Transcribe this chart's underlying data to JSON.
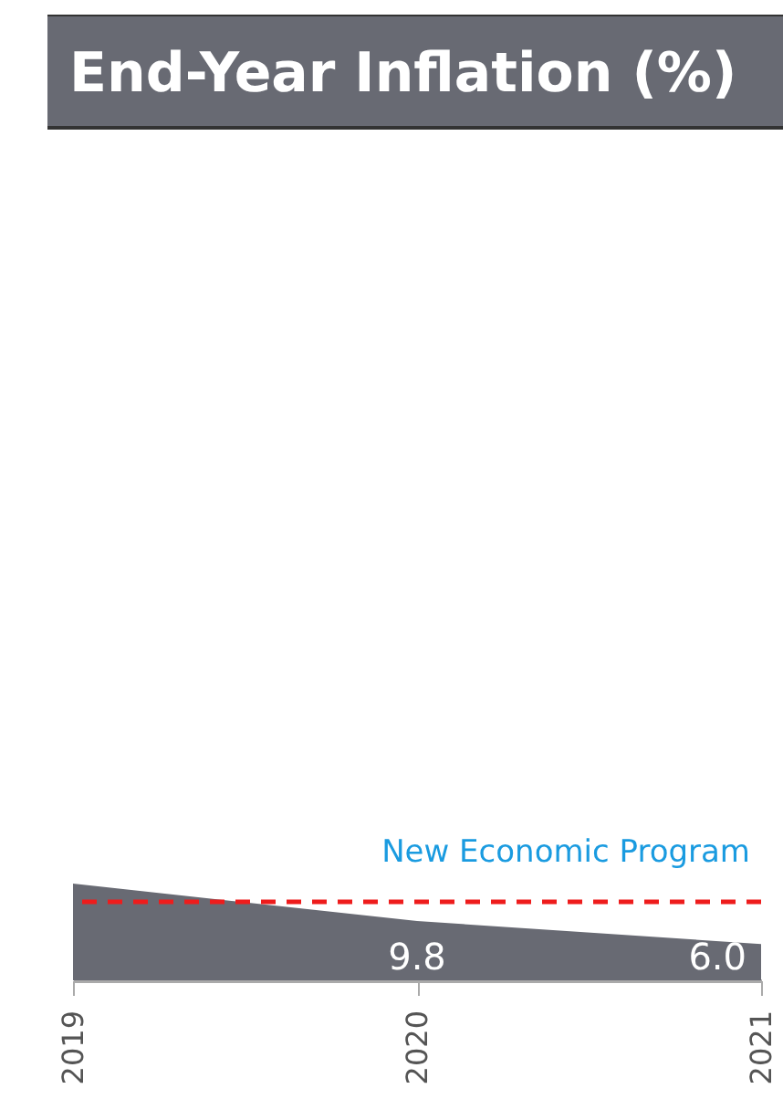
{
  "chart_data": {
    "type": "area",
    "title": "End-Year Inflation (%)",
    "x": [
      2019,
      2020,
      2021
    ],
    "series": [
      {
        "color": "#686a73",
        "values": [
          16,
          9.8,
          6.0
        ],
        "value_labels": [
          null,
          "9.8",
          "6.0"
        ]
      }
    ],
    "xlim": [
      2019,
      2021
    ],
    "xticks": [
      2019,
      2020,
      2021
    ],
    "grid": false,
    "tick_labels": "x",
    "ref_lines": [
      {
        "axis": "y",
        "value": 13,
        "label": "New Economic Program",
        "color": "#ee1c1c",
        "line_style": "dashed"
      }
    ]
  }
}
